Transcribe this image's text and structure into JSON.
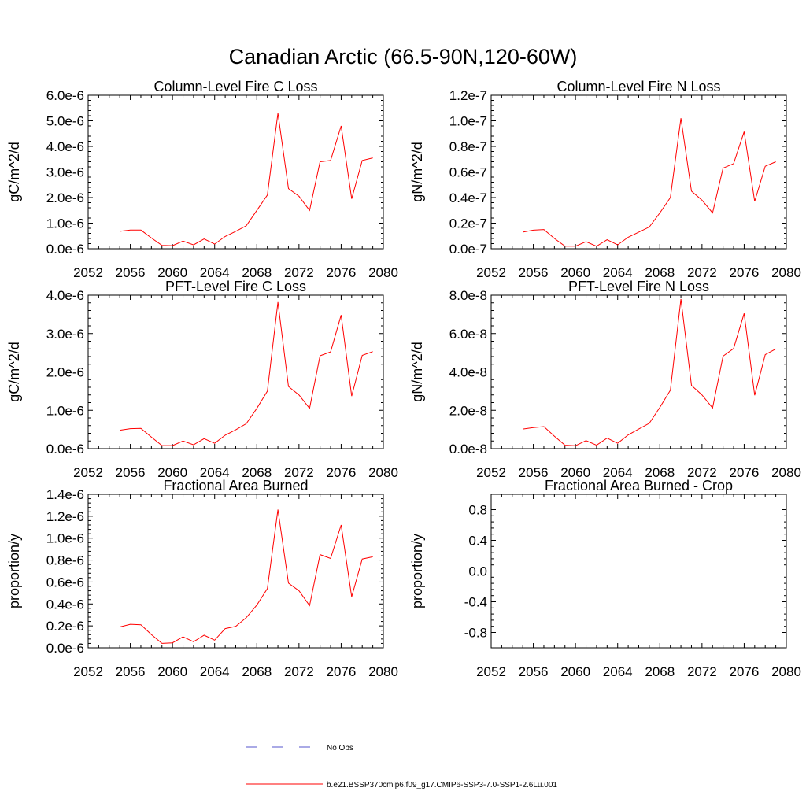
{
  "figure": {
    "title": "Canadian Arctic (66.5-90N,120-60W)"
  },
  "legend": {
    "entries": [
      {
        "label": "No Obs",
        "color": "#5555cc",
        "dash": true
      },
      {
        "label": "b.e21.BSSP370cmip6.f09_g17.CMIP6-SSP3-7.0-SSP1-2.6Lu.001",
        "color": "#ff0000",
        "dash": false
      }
    ]
  },
  "chart_data": [
    {
      "type": "line",
      "title": "Column-Level Fire C Loss",
      "ylabel": "gC/m^2/d",
      "xlim": [
        2052,
        2080
      ],
      "ylim": [
        0,
        6e-06
      ],
      "xticks": [
        "2052",
        "2056",
        "2060",
        "2064",
        "2068",
        "2072",
        "2076",
        "2080"
      ],
      "yticks": [
        {
          "v": 0,
          "label": "0.0e-6"
        },
        {
          "v": 1e-06,
          "label": "1.0e-6"
        },
        {
          "v": 2e-06,
          "label": "2.0e-6"
        },
        {
          "v": 3e-06,
          "label": "3.0e-6"
        },
        {
          "v": 4e-06,
          "label": "4.0e-6"
        },
        {
          "v": 5e-06,
          "label": "5.0e-6"
        },
        {
          "v": 6e-06,
          "label": "6.0e-6"
        }
      ],
      "x": [
        2055,
        2056,
        2057,
        2058,
        2059,
        2060,
        2061,
        2062,
        2063,
        2064,
        2065,
        2066,
        2067,
        2068,
        2069,
        2070,
        2071,
        2072,
        2073,
        2074,
        2075,
        2076,
        2077,
        2078,
        2079
      ],
      "series": [
        {
          "color": "#ff0000",
          "values": [
            6.8e-07,
            7.3e-07,
            7.3e-07,
            4.2e-07,
            1.3e-07,
            1.2e-07,
            3e-07,
            1.5e-07,
            3.8e-07,
            1.8e-07,
            4.8e-07,
            6.8e-07,
            9e-07,
            1.5e-06,
            2.1e-06,
            5.3e-06,
            2.35e-06,
            2.05e-06,
            1.5e-06,
            3.4e-06,
            3.45e-06,
            4.8e-06,
            1.95e-06,
            3.45e-06,
            3.55e-06
          ]
        }
      ]
    },
    {
      "type": "line",
      "title": "Column-Level Fire N Loss",
      "ylabel": "gN/m^2/d",
      "xlim": [
        2052,
        2080
      ],
      "ylim": [
        0,
        1.2e-07
      ],
      "xticks": [
        "2052",
        "2056",
        "2060",
        "2064",
        "2068",
        "2072",
        "2076",
        "2080"
      ],
      "yticks": [
        {
          "v": 0,
          "label": "0.0e-7"
        },
        {
          "v": 2e-08,
          "label": "0.2e-7"
        },
        {
          "v": 4e-08,
          "label": "0.4e-7"
        },
        {
          "v": 6e-08,
          "label": "0.6e-7"
        },
        {
          "v": 8e-08,
          "label": "0.8e-7"
        },
        {
          "v": 1e-07,
          "label": "1.0e-7"
        },
        {
          "v": 1.2e-07,
          "label": "1.2e-7"
        }
      ],
      "x": [
        2055,
        2056,
        2057,
        2058,
        2059,
        2060,
        2061,
        2062,
        2063,
        2064,
        2065,
        2066,
        2067,
        2068,
        2069,
        2070,
        2071,
        2072,
        2073,
        2074,
        2075,
        2076,
        2077,
        2078,
        2079
      ],
      "series": [
        {
          "color": "#ff0000",
          "values": [
            1.3e-08,
            1.45e-08,
            1.5e-08,
            8e-09,
            2e-09,
            2e-09,
            5.5e-09,
            2e-09,
            7e-09,
            3e-09,
            9e-09,
            1.3e-08,
            1.7e-08,
            2.8e-08,
            4e-08,
            1.02e-07,
            4.5e-08,
            3.8e-08,
            2.8e-08,
            6.3e-08,
            6.65e-08,
            9.15e-08,
            3.7e-08,
            6.45e-08,
            6.8e-08
          ]
        }
      ]
    },
    {
      "type": "line",
      "title": "PFT-Level Fire C Loss",
      "ylabel": "gC/m^2/d",
      "xlim": [
        2052,
        2080
      ],
      "ylim": [
        0,
        4e-06
      ],
      "xticks": [
        "2052",
        "2056",
        "2060",
        "2064",
        "2068",
        "2072",
        "2076",
        "2080"
      ],
      "yticks": [
        {
          "v": 0,
          "label": "0.0e-6"
        },
        {
          "v": 1e-06,
          "label": "1.0e-6"
        },
        {
          "v": 2e-06,
          "label": "2.0e-6"
        },
        {
          "v": 3e-06,
          "label": "3.0e-6"
        },
        {
          "v": 4e-06,
          "label": "4.0e-6"
        }
      ],
      "x": [
        2055,
        2056,
        2057,
        2058,
        2059,
        2060,
        2061,
        2062,
        2063,
        2064,
        2065,
        2066,
        2067,
        2068,
        2069,
        2070,
        2071,
        2072,
        2073,
        2074,
        2075,
        2076,
        2077,
        2078,
        2079
      ],
      "series": [
        {
          "color": "#ff0000",
          "values": [
            4.8e-07,
            5.2e-07,
            5.3e-07,
            3e-07,
            8e-08,
            8e-08,
            2e-07,
            1e-07,
            2.6e-07,
            1.4e-07,
            3.5e-07,
            4.9e-07,
            6.5e-07,
            1.05e-06,
            1.5e-06,
            3.82e-06,
            1.62e-06,
            1.4e-06,
            1.05e-06,
            2.42e-06,
            2.52e-06,
            3.48e-06,
            1.37e-06,
            2.43e-06,
            2.53e-06
          ]
        }
      ]
    },
    {
      "type": "line",
      "title": "PFT-Level Fire N Loss",
      "ylabel": "gN/m^2/d",
      "xlim": [
        2052,
        2080
      ],
      "ylim": [
        0,
        8e-08
      ],
      "xticks": [
        "2052",
        "2056",
        "2060",
        "2064",
        "2068",
        "2072",
        "2076",
        "2080"
      ],
      "yticks": [
        {
          "v": 0,
          "label": "0.0e-8"
        },
        {
          "v": 2e-08,
          "label": "2.0e-8"
        },
        {
          "v": 4e-08,
          "label": "4.0e-8"
        },
        {
          "v": 6e-08,
          "label": "6.0e-8"
        },
        {
          "v": 8e-08,
          "label": "8.0e-8"
        }
      ],
      "x": [
        2055,
        2056,
        2057,
        2058,
        2059,
        2060,
        2061,
        2062,
        2063,
        2064,
        2065,
        2066,
        2067,
        2068,
        2069,
        2070,
        2071,
        2072,
        2073,
        2074,
        2075,
        2076,
        2077,
        2078,
        2079
      ],
      "series": [
        {
          "color": "#ff0000",
          "values": [
            1.02e-08,
            1.1e-08,
            1.15e-08,
            6.5e-09,
            1.8e-09,
            1.5e-09,
            4.2e-09,
            1.8e-09,
            5.5e-09,
            2.8e-09,
            7.2e-09,
            1.02e-08,
            1.32e-08,
            2.15e-08,
            3.05e-08,
            7.8e-08,
            3.3e-08,
            2.8e-08,
            2.12e-08,
            4.82e-08,
            5.22e-08,
            7.05e-08,
            2.78e-08,
            4.9e-08,
            5.2e-08
          ]
        }
      ]
    },
    {
      "type": "line",
      "title": "Fractional Area Burned",
      "ylabel": "proportion/y",
      "xlim": [
        2052,
        2080
      ],
      "ylim": [
        0,
        1.4e-06
      ],
      "xticks": [
        "2052",
        "2056",
        "2060",
        "2064",
        "2068",
        "2072",
        "2076",
        "2080"
      ],
      "yticks": [
        {
          "v": 0,
          "label": "0.0e-6"
        },
        {
          "v": 2e-07,
          "label": "0.2e-6"
        },
        {
          "v": 4e-07,
          "label": "0.4e-6"
        },
        {
          "v": 6e-07,
          "label": "0.6e-6"
        },
        {
          "v": 8e-07,
          "label": "0.8e-6"
        },
        {
          "v": 1e-06,
          "label": "1.0e-6"
        },
        {
          "v": 1.2e-06,
          "label": "1.2e-6"
        },
        {
          "v": 1.4e-06,
          "label": "1.4e-6"
        }
      ],
      "x": [
        2055,
        2056,
        2057,
        2058,
        2059,
        2060,
        2061,
        2062,
        2063,
        2064,
        2065,
        2066,
        2067,
        2068,
        2069,
        2070,
        2071,
        2072,
        2073,
        2074,
        2075,
        2076,
        2077,
        2078,
        2079
      ],
      "series": [
        {
          "color": "#ff0000",
          "values": [
            1.9e-07,
            2.15e-07,
            2.1e-07,
            1.2e-07,
            4e-08,
            4.5e-08,
            1e-07,
            5.5e-08,
            1.15e-07,
            7e-08,
            1.75e-07,
            1.95e-07,
            2.75e-07,
            3.9e-07,
            5.4e-07,
            1.26e-06,
            5.9e-07,
            5.2e-07,
            3.85e-07,
            8.5e-07,
            8.15e-07,
            1.12e-06,
            4.65e-07,
            8.1e-07,
            8.3e-07
          ]
        }
      ]
    },
    {
      "type": "line",
      "title": "Fractional Area Burned - Crop",
      "ylabel": "proportion/y",
      "xlim": [
        2052,
        2080
      ],
      "ylim": [
        -1,
        1
      ],
      "xticks": [
        "2052",
        "2056",
        "2060",
        "2064",
        "2068",
        "2072",
        "2076",
        "2080"
      ],
      "yticks": [
        {
          "v": -0.8,
          "label": "-0.8"
        },
        {
          "v": -0.4,
          "label": "-0.4"
        },
        {
          "v": 0,
          "label": "0.0"
        },
        {
          "v": 0.4,
          "label": "0.4"
        },
        {
          "v": 0.8,
          "label": "0.8"
        }
      ],
      "x": [
        2055,
        2056,
        2057,
        2058,
        2059,
        2060,
        2061,
        2062,
        2063,
        2064,
        2065,
        2066,
        2067,
        2068,
        2069,
        2070,
        2071,
        2072,
        2073,
        2074,
        2075,
        2076,
        2077,
        2078,
        2079
      ],
      "series": [
        {
          "color": "#ff0000",
          "values": [
            0,
            0,
            0,
            0,
            0,
            0,
            0,
            0,
            0,
            0,
            0,
            0,
            0,
            0,
            0,
            0,
            0,
            0,
            0,
            0,
            0,
            0,
            0,
            0,
            0
          ]
        }
      ]
    }
  ]
}
